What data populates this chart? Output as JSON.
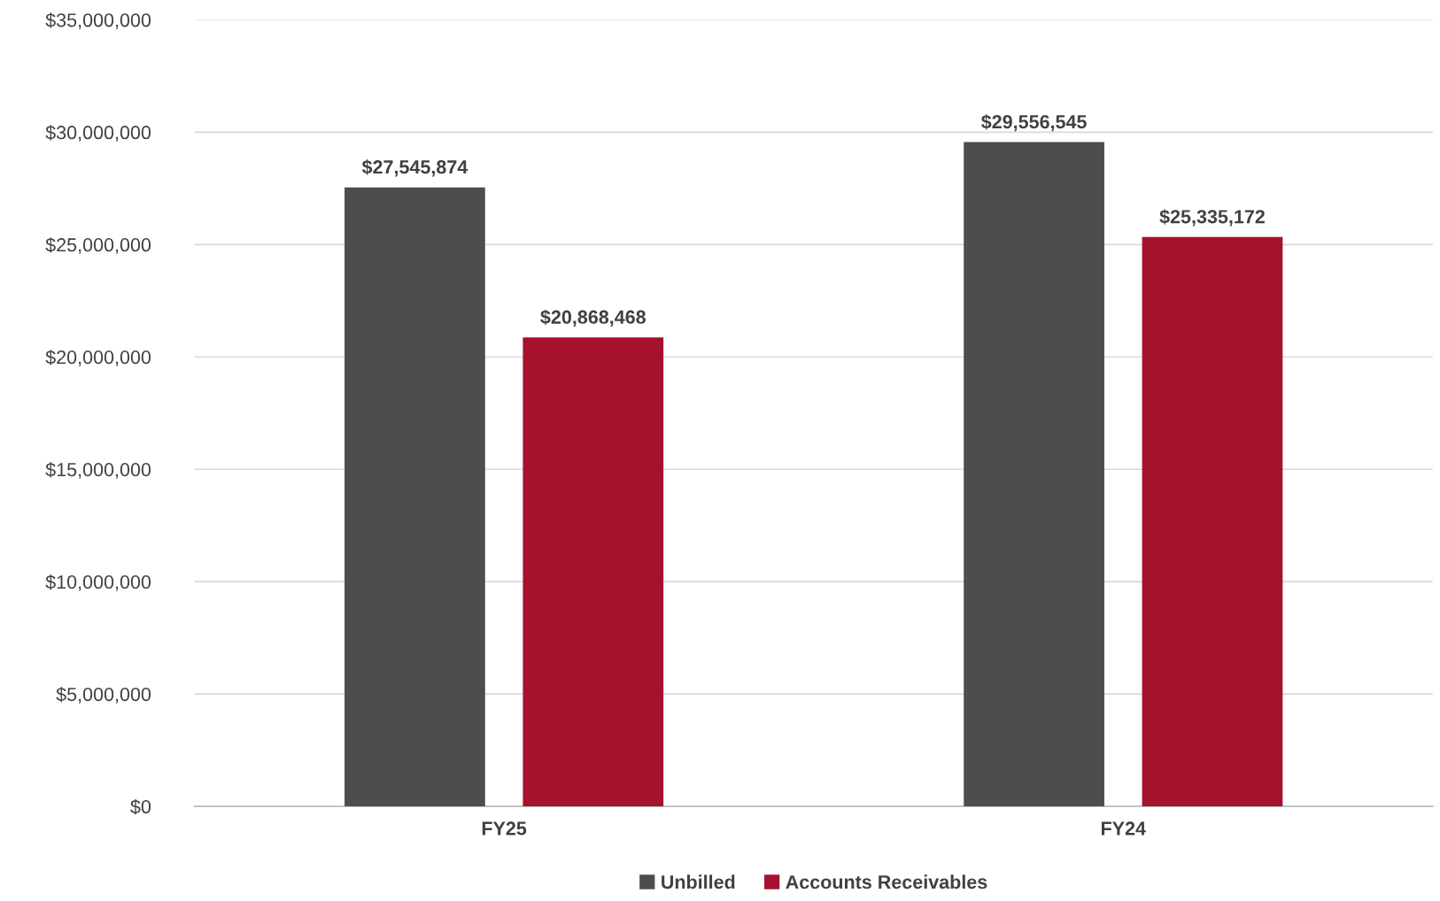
{
  "chart_data": {
    "type": "bar",
    "categories": [
      "FY25",
      "FY24"
    ],
    "series": [
      {
        "name": "Unbilled",
        "color": "#4d4d4d",
        "values": [
          27545874,
          29556545
        ],
        "value_labels": [
          "$27,545,874",
          "$29,556,545"
        ]
      },
      {
        "name": "Accounts Receivables",
        "color": "#a6112e",
        "values": [
          20868468,
          25335172
        ],
        "value_labels": [
          "$20,868,468",
          "$25,335,172"
        ]
      }
    ],
    "ylim": [
      0,
      35000000
    ],
    "yticks": [
      {
        "value": 0,
        "label": "$0"
      },
      {
        "value": 5000000,
        "label": "$5,000,000"
      },
      {
        "value": 10000000,
        "label": "$10,000,000"
      },
      {
        "value": 15000000,
        "label": "$15,000,000"
      },
      {
        "value": 20000000,
        "label": "$20,000,000"
      },
      {
        "value": 25000000,
        "label": "$25,000,000"
      },
      {
        "value": 30000000,
        "label": "$30,000,000"
      },
      {
        "value": 35000000,
        "label": "$35,000,000"
      }
    ],
    "grid": "y",
    "legend": "bottom"
  }
}
